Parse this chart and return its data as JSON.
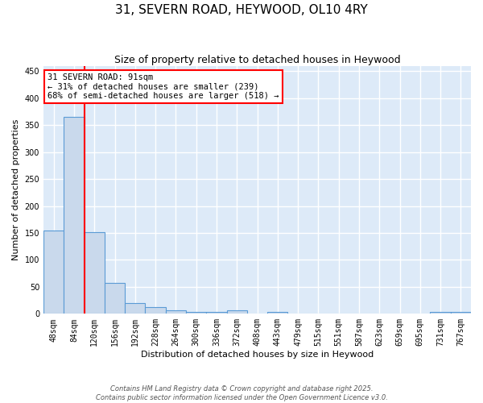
{
  "title": "31, SEVERN ROAD, HEYWOOD, OL10 4RY",
  "subtitle": "Size of property relative to detached houses in Heywood",
  "xlabel": "Distribution of detached houses by size in Heywood",
  "ylabel": "Number of detached properties",
  "categories": [
    "48sqm",
    "84sqm",
    "120sqm",
    "156sqm",
    "192sqm",
    "228sqm",
    "264sqm",
    "300sqm",
    "336sqm",
    "372sqm",
    "408sqm",
    "443sqm",
    "479sqm",
    "515sqm",
    "551sqm",
    "587sqm",
    "623sqm",
    "659sqm",
    "695sqm",
    "731sqm",
    "767sqm"
  ],
  "values": [
    155,
    365,
    152,
    57,
    20,
    13,
    6,
    4,
    3,
    6,
    0,
    3,
    0,
    0,
    0,
    0,
    0,
    0,
    0,
    3,
    4
  ],
  "bar_color": "#c9d9ec",
  "bar_edge_color": "#5b9bd5",
  "marker_color": "red",
  "annotation_line1": "31 SEVERN ROAD: 91sqm",
  "annotation_line2": "← 31% of detached houses are smaller (239)",
  "annotation_line3": "68% of semi-detached houses are larger (518) →",
  "ylim": [
    0,
    460
  ],
  "yticks": [
    0,
    50,
    100,
    150,
    200,
    250,
    300,
    350,
    400,
    450
  ],
  "background_color": "#ddeaf8",
  "grid_color": "#c0d4e8",
  "footer_line1": "Contains HM Land Registry data © Crown copyright and database right 2025.",
  "footer_line2": "Contains public sector information licensed under the Open Government Licence v3.0.",
  "title_fontsize": 11,
  "subtitle_fontsize": 9,
  "axis_label_fontsize": 8,
  "tick_fontsize": 7,
  "annotation_fontsize": 7.5
}
